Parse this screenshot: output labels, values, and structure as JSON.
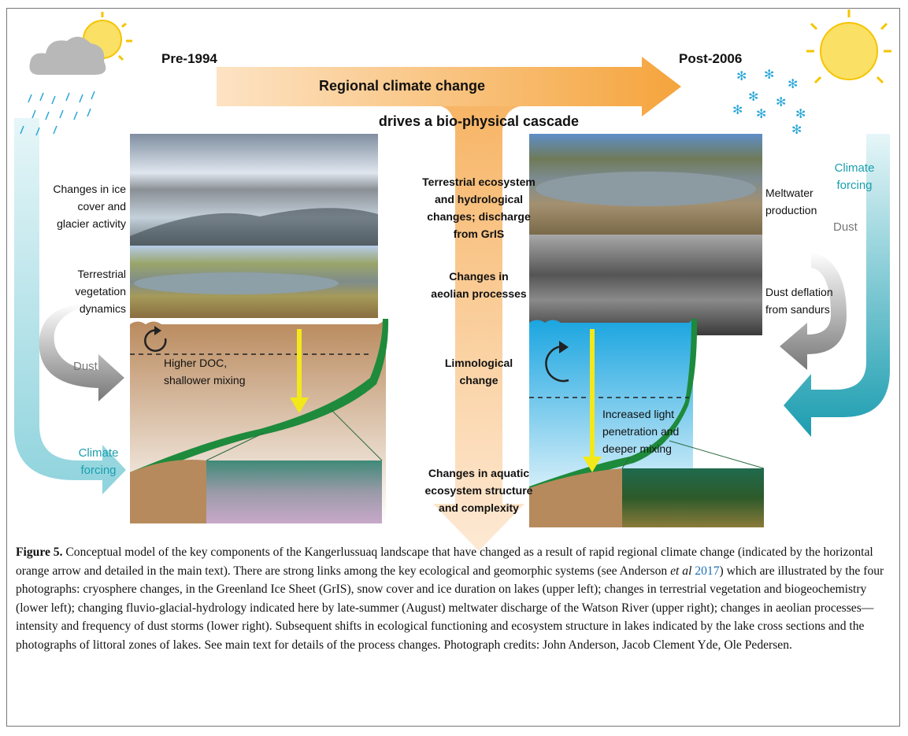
{
  "figure": {
    "headings": {
      "pre": "Pre-1994",
      "post": "Post-2006",
      "arrow": "Regional climate change",
      "cascade": "drives a bio-physical cascade"
    },
    "left": {
      "ice": [
        "Changes in ice",
        "cover and",
        "glacier activity"
      ],
      "vegetation": [
        "Terrestrial",
        "vegetation",
        "dynamics"
      ],
      "dust": "Dust",
      "forcing": [
        "Climate",
        "forcing"
      ],
      "lake": [
        "Higher DOC,",
        "shallower mixing"
      ]
    },
    "center": {
      "terrestrial": [
        "Terrestrial ecosystem",
        "and hydrological",
        "changes;  discharge",
        "from GrIS"
      ],
      "aeolian": [
        "Changes in",
        "aeolian processes"
      ],
      "limnological": [
        "Limnological",
        "change"
      ],
      "aquatic": [
        "Changes in aquatic",
        "ecosystem structure",
        "and complexity"
      ]
    },
    "right": {
      "forcing": [
        "Climate",
        "forcing"
      ],
      "meltwater": [
        "Meltwater",
        "production"
      ],
      "dust": "Dust",
      "deflation": [
        "Dust deflation",
        "from sandurs"
      ],
      "lake": [
        "Increased light",
        "penetration and",
        "deeper mixing"
      ]
    },
    "caption": {
      "label": "Figure 5.",
      "text_1": " Conceptual model of the key components of the Kangerlussuaq landscape that have changed as a result of rapid regional climate change (indicated by the horizontal orange arrow and detailed in the main text). There are strong links among the key ecological and geomorphic systems (see Anderson ",
      "cite_italic": "et al",
      "cite_year": "2017",
      "text_2": ") which are illustrated by the four photographs: cryosphere changes, in the Greenland Ice Sheet (GrIS), snow cover and ice duration on lakes (upper left); changes in terrestrial vegetation and biogeochemistry (lower left); changing fluvio-glacial-hydrology indicated here by late-summer (August) meltwater discharge of the Watson River (upper right); changes in aeolian processes—intensity and frequency of dust storms (lower right). Subsequent shifts in ecological functioning and ecosystem structure in lakes indicated by the lake cross sections and the photographs of littoral zones of lakes. See main text for details of the process changes. Photograph credits: John Anderson, Jacob Clement Yde, Ole Pedersen."
    }
  }
}
